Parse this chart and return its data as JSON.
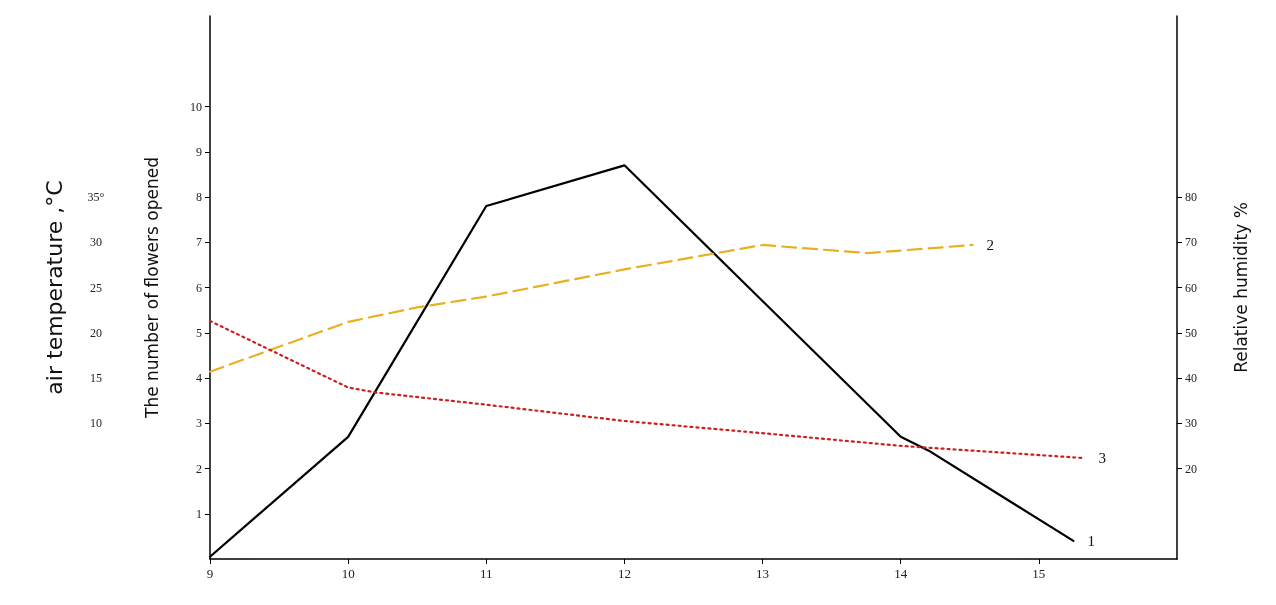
{
  "chart_data": {
    "type": "line",
    "xlim": [
      9,
      16
    ],
    "xticks": [
      9,
      10,
      11,
      12,
      13,
      14,
      15
    ],
    "ylabel": "The number of flowers opened",
    "ylim": [
      0,
      12
    ],
    "yticks": [
      1,
      2,
      3,
      4,
      5,
      6,
      7,
      8,
      9,
      10
    ],
    "y2label": "Relative humidity %",
    "y2lim": [
      0,
      120
    ],
    "y2ticks": [
      20,
      30,
      40,
      50,
      60,
      70,
      80
    ],
    "y3label": "air temperature ,°C",
    "y3lim": [
      -5,
      55
    ],
    "y3ticks": [
      {
        "value": 10,
        "label": "10"
      },
      {
        "value": 15,
        "label": "15"
      },
      {
        "value": 20,
        "label": "20"
      },
      {
        "value": 25,
        "label": "25"
      },
      {
        "value": 30,
        "label": "30"
      },
      {
        "value": 35,
        "label": "35°"
      }
    ],
    "grid": false,
    "legend": false,
    "marker": "none",
    "series": [
      {
        "name": "1",
        "color": "#000000",
        "line_style": "solid",
        "x": [
          9,
          10,
          11,
          12,
          14,
          14.2,
          15.25
        ],
        "values": [
          0.05,
          2.7,
          7.8,
          8.7,
          2.7,
          2.4,
          0.4
        ]
      },
      {
        "name": "2",
        "color": "#e8b020",
        "line_style": "dashed",
        "axis": "y3",
        "x": [
          9,
          10,
          10.5,
          11,
          12,
          13,
          13.76,
          14.52
        ],
        "values": [
          15.7,
          21.2,
          22.8,
          24.0,
          27.0,
          29.7,
          28.8,
          29.7
        ]
      },
      {
        "name": "3",
        "color": "#cc2020",
        "line_style": "dotted",
        "axis": "y2",
        "x": [
          9,
          10,
          10.2,
          11,
          12,
          13,
          14,
          15.33
        ],
        "values": [
          52.6,
          37.9,
          36.8,
          34.1,
          30.5,
          27.8,
          25,
          22.3
        ]
      }
    ]
  }
}
